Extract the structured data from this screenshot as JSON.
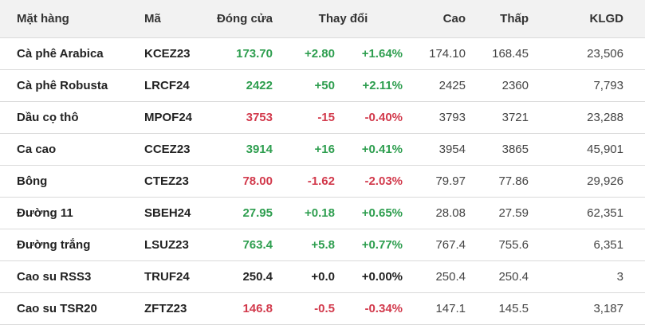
{
  "colors": {
    "up": "#2e9e4f",
    "down": "#d23a4c",
    "flat": "#222222",
    "header_bg": "#f2f2f2"
  },
  "headers": {
    "name": "Mặt hàng",
    "code": "Mã",
    "close": "Đóng cửa",
    "change": "Thay đổi",
    "high": "Cao",
    "low": "Thấp",
    "volume": "KLGD"
  },
  "rows": [
    {
      "name": "Cà phê Arabica",
      "code": "KCEZ23",
      "close": "173.70",
      "change": "+2.80",
      "pct": "+1.64%",
      "high": "174.10",
      "low": "168.45",
      "volume": "23,506",
      "trend": "up"
    },
    {
      "name": "Cà phê Robusta",
      "code": "LRCF24",
      "close": "2422",
      "change": "+50",
      "pct": "+2.11%",
      "high": "2425",
      "low": "2360",
      "volume": "7,793",
      "trend": "up"
    },
    {
      "name": "Dầu cọ thô",
      "code": "MPOF24",
      "close": "3753",
      "change": "-15",
      "pct": "-0.40%",
      "high": "3793",
      "low": "3721",
      "volume": "23,288",
      "trend": "down"
    },
    {
      "name": "Ca cao",
      "code": "CCEZ23",
      "close": "3914",
      "change": "+16",
      "pct": "+0.41%",
      "high": "3954",
      "low": "3865",
      "volume": "45,901",
      "trend": "up"
    },
    {
      "name": "Bông",
      "code": "CTEZ23",
      "close": "78.00",
      "change": "-1.62",
      "pct": "-2.03%",
      "high": "79.97",
      "low": "77.86",
      "volume": "29,926",
      "trend": "down"
    },
    {
      "name": "Đường 11",
      "code": "SBEH24",
      "close": "27.95",
      "change": "+0.18",
      "pct": "+0.65%",
      "high": "28.08",
      "low": "27.59",
      "volume": "62,351",
      "trend": "up"
    },
    {
      "name": "Đường trắng",
      "code": "LSUZ23",
      "close": "763.4",
      "change": "+5.8",
      "pct": "+0.77%",
      "high": "767.4",
      "low": "755.6",
      "volume": "6,351",
      "trend": "up"
    },
    {
      "name": "Cao su RSS3",
      "code": "TRUF24",
      "close": "250.4",
      "change": "+0.0",
      "pct": "+0.00%",
      "high": "250.4",
      "low": "250.4",
      "volume": "3",
      "trend": "flat"
    },
    {
      "name": "Cao su TSR20",
      "code": "ZFTZ23",
      "close": "146.8",
      "change": "-0.5",
      "pct": "-0.34%",
      "high": "147.1",
      "low": "145.5",
      "volume": "3,187",
      "trend": "down"
    }
  ]
}
